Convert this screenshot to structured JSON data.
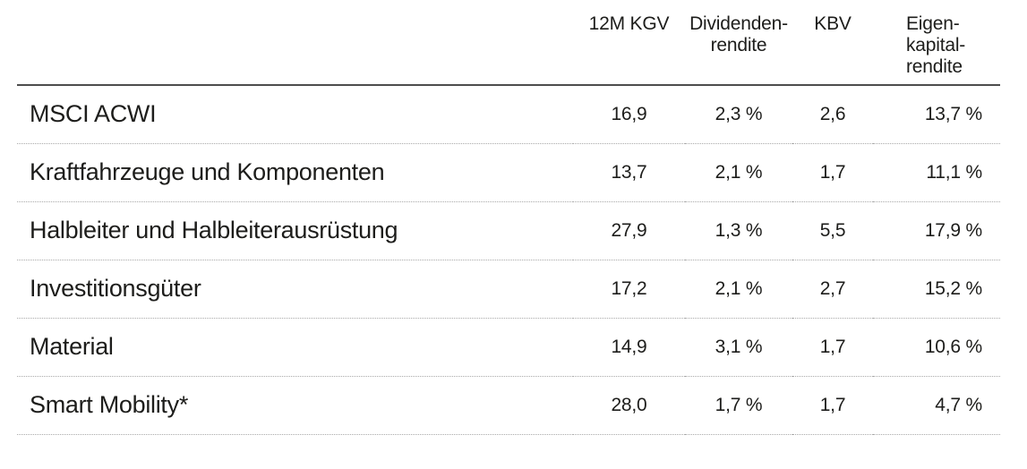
{
  "colors": {
    "background": "#ffffff",
    "text": "#1d1d1b",
    "header_rule": "#4d4d4d",
    "row_rule_dotted": "#a9a9a9"
  },
  "chart_data": {
    "type": "table",
    "columns": [
      "",
      "12M KGV",
      "Dividendenrendite",
      "KBV",
      "Eigenkapitalrendite"
    ],
    "rows": [
      [
        "MSCI ACWI",
        "16,9",
        "2,3 %",
        "2,6",
        "13,7 %"
      ],
      [
        "Kraftfahrzeuge und Komponenten",
        "13,7",
        "2,1 %",
        "1,7",
        "11,1 %"
      ],
      [
        "Halbleiter und Halbleiterausrüstung",
        "27,9",
        "1,3 %",
        "5,5",
        "17,9 %"
      ],
      [
        "Investitionsgüter",
        "17,2",
        "2,1 %",
        "2,7",
        "15,2 %"
      ],
      [
        "Material",
        "14,9",
        "3,1 %",
        "1,7",
        "10,6 %"
      ],
      [
        "Smart Mobility*",
        "28,0",
        "1,7 %",
        "1,7",
        "4,7 %"
      ]
    ],
    "title": "",
    "legend": "none",
    "grid": "dotted row separators, solid header rule"
  },
  "header_display": {
    "kgv": "12M KGV",
    "div_lines": [
      "Dividenden-",
      "rendite"
    ],
    "kbv": "KBV",
    "ek_lines": [
      "Eigen-",
      "kapital-",
      "rendite"
    ]
  }
}
